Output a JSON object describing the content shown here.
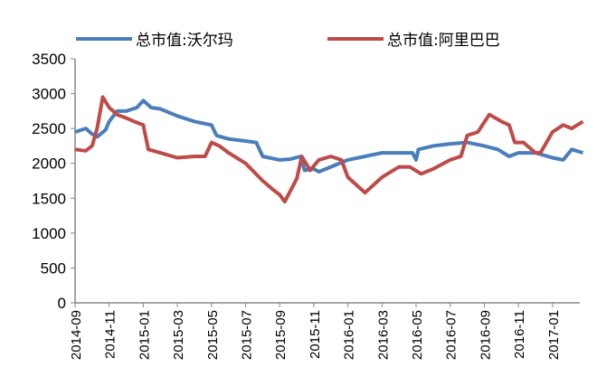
{
  "chart_data": {
    "type": "line",
    "title": "",
    "xlabel": "",
    "ylabel": "",
    "ylim": [
      0,
      3500
    ],
    "yticks": [
      0,
      500,
      1000,
      1500,
      2000,
      2500,
      3000,
      3500
    ],
    "xlim": [
      "2014-09-01",
      "2017-02-25"
    ],
    "xtick_labels": [
      "2014-09",
      "2014-11",
      "2015-01",
      "2015-03",
      "2015-05",
      "2015-07",
      "2015-09",
      "2015-11",
      "2016-01",
      "2016-03",
      "2016-05",
      "2016-07",
      "2016-09",
      "2016-11",
      "2017-01"
    ],
    "grid": false,
    "legend_position": "top",
    "series": [
      {
        "name": "总市值:沃尔玛",
        "color": "#4a7ebb",
        "points": [
          [
            "2014-09-01",
            2450
          ],
          [
            "2014-09-20",
            2500
          ],
          [
            "2014-10-01",
            2420
          ],
          [
            "2014-10-10",
            2380
          ],
          [
            "2014-10-25",
            2480
          ],
          [
            "2014-11-01",
            2600
          ],
          [
            "2014-11-15",
            2750
          ],
          [
            "2014-12-01",
            2750
          ],
          [
            "2014-12-20",
            2800
          ],
          [
            "2015-01-01",
            2900
          ],
          [
            "2015-01-15",
            2800
          ],
          [
            "2015-02-01",
            2780
          ],
          [
            "2015-03-01",
            2680
          ],
          [
            "2015-04-01",
            2600
          ],
          [
            "2015-05-01",
            2550
          ],
          [
            "2015-05-10",
            2400
          ],
          [
            "2015-06-01",
            2350
          ],
          [
            "2015-07-01",
            2320
          ],
          [
            "2015-07-20",
            2300
          ],
          [
            "2015-08-01",
            2100
          ],
          [
            "2015-09-01",
            2050
          ],
          [
            "2015-09-20",
            2060
          ],
          [
            "2015-10-08",
            2100
          ],
          [
            "2015-10-15",
            1900
          ],
          [
            "2015-11-01",
            1920
          ],
          [
            "2015-11-10",
            1880
          ],
          [
            "2015-12-01",
            1950
          ],
          [
            "2016-01-01",
            2050
          ],
          [
            "2016-02-01",
            2100
          ],
          [
            "2016-03-01",
            2150
          ],
          [
            "2016-04-01",
            2150
          ],
          [
            "2016-04-25",
            2150
          ],
          [
            "2016-05-01",
            2050
          ],
          [
            "2016-05-05",
            2200
          ],
          [
            "2016-06-01",
            2250
          ],
          [
            "2016-07-01",
            2280
          ],
          [
            "2016-08-01",
            2300
          ],
          [
            "2016-09-01",
            2250
          ],
          [
            "2016-09-25",
            2200
          ],
          [
            "2016-10-15",
            2100
          ],
          [
            "2016-11-01",
            2150
          ],
          [
            "2016-12-01",
            2150
          ],
          [
            "2017-01-01",
            2080
          ],
          [
            "2017-01-20",
            2050
          ],
          [
            "2017-02-05",
            2200
          ],
          [
            "2017-02-25",
            2150
          ]
        ]
      },
      {
        "name": "总市值:阿里巴巴",
        "color": "#be4b48",
        "points": [
          [
            "2014-09-01",
            2200
          ],
          [
            "2014-09-20",
            2180
          ],
          [
            "2014-10-01",
            2250
          ],
          [
            "2014-10-10",
            2500
          ],
          [
            "2014-10-20",
            2950
          ],
          [
            "2014-11-01",
            2800
          ],
          [
            "2014-11-15",
            2700
          ],
          [
            "2014-12-01",
            2650
          ],
          [
            "2014-12-15",
            2600
          ],
          [
            "2015-01-01",
            2550
          ],
          [
            "2015-01-10",
            2200
          ],
          [
            "2015-02-01",
            2150
          ],
          [
            "2015-03-01",
            2080
          ],
          [
            "2015-04-01",
            2100
          ],
          [
            "2015-04-20",
            2100
          ],
          [
            "2015-05-01",
            2300
          ],
          [
            "2015-05-15",
            2250
          ],
          [
            "2015-06-01",
            2150
          ],
          [
            "2015-07-01",
            2000
          ],
          [
            "2015-08-01",
            1750
          ],
          [
            "2015-08-20",
            1620
          ],
          [
            "2015-09-01",
            1550
          ],
          [
            "2015-09-10",
            1450
          ],
          [
            "2015-10-01",
            1780
          ],
          [
            "2015-10-10",
            2100
          ],
          [
            "2015-10-25",
            1900
          ],
          [
            "2015-11-10",
            2050
          ],
          [
            "2015-12-01",
            2100
          ],
          [
            "2015-12-20",
            2050
          ],
          [
            "2016-01-01",
            1800
          ],
          [
            "2016-02-01",
            1580
          ],
          [
            "2016-03-01",
            1800
          ],
          [
            "2016-04-01",
            1950
          ],
          [
            "2016-04-20",
            1950
          ],
          [
            "2016-05-10",
            1850
          ],
          [
            "2016-06-01",
            1920
          ],
          [
            "2016-07-01",
            2050
          ],
          [
            "2016-07-20",
            2100
          ],
          [
            "2016-08-01",
            2400
          ],
          [
            "2016-08-20",
            2450
          ],
          [
            "2016-09-10",
            2700
          ],
          [
            "2016-10-01",
            2600
          ],
          [
            "2016-10-15",
            2550
          ],
          [
            "2016-10-25",
            2300
          ],
          [
            "2016-11-10",
            2300
          ],
          [
            "2016-12-01",
            2150
          ],
          [
            "2016-12-10",
            2150
          ],
          [
            "2017-01-01",
            2450
          ],
          [
            "2017-01-20",
            2550
          ],
          [
            "2017-02-05",
            2500
          ],
          [
            "2017-02-25",
            2600
          ]
        ]
      }
    ]
  }
}
